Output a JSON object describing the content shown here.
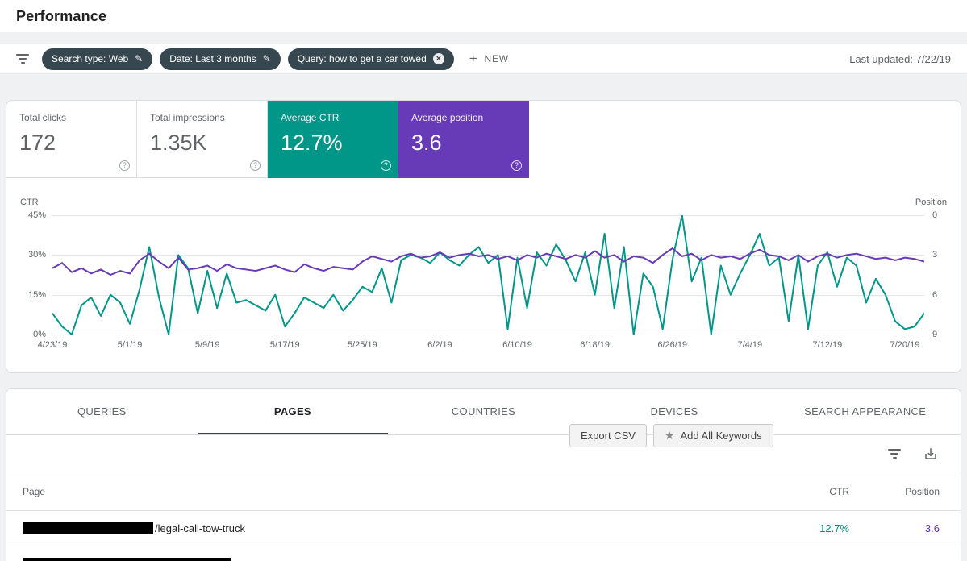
{
  "header": {
    "title": "Performance"
  },
  "filter_bar": {
    "chips": [
      {
        "label": "Search type: Web",
        "action": "edit"
      },
      {
        "label": "Date: Last 3 months",
        "action": "edit"
      },
      {
        "label": "Query: how to get a car towed",
        "action": "remove"
      }
    ],
    "new_button_label": "NEW",
    "last_updated": "Last updated: 7/22/19"
  },
  "icons": {
    "edit": "✎",
    "close": "×",
    "plus": "+",
    "star": "★",
    "help": "?"
  },
  "colors": {
    "ctr_teal": "#009688",
    "position_purple": "#673ab7",
    "chip_bg": "#37474f"
  },
  "metrics": [
    {
      "label": "Total clicks",
      "value": "172",
      "selected": false
    },
    {
      "label": "Total impressions",
      "value": "1.35K",
      "selected": false
    },
    {
      "label": "Average CTR",
      "value": "12.7%",
      "selected": true,
      "color": "#009688"
    },
    {
      "label": "Average position",
      "value": "3.6",
      "selected": true,
      "color": "#673ab7"
    }
  ],
  "chart_data": {
    "type": "line",
    "title": "CTR and average position over time",
    "left_axis": {
      "label": "CTR",
      "ticks": [
        "45%",
        "30%",
        "15%",
        "0%"
      ],
      "range": [
        0,
        45
      ]
    },
    "right_axis": {
      "label": "Position",
      "ticks": [
        "0",
        "3",
        "6",
        "9"
      ],
      "range": [
        0,
        9
      ],
      "inverted": true
    },
    "x_tick_labels": [
      "4/23/19",
      "5/1/19",
      "5/9/19",
      "5/17/19",
      "5/25/19",
      "6/2/19",
      "6/10/19",
      "6/18/19",
      "6/26/19",
      "7/4/19",
      "7/12/19",
      "7/20/19"
    ],
    "grid": true,
    "series": [
      {
        "name": "CTR",
        "axis": "left",
        "color": "#009688",
        "values": [
          8,
          3,
          0,
          11,
          14,
          7,
          15,
          12,
          4,
          17,
          33,
          14,
          0,
          30,
          25,
          8,
          24,
          10,
          23,
          12,
          13,
          11,
          9,
          15,
          3,
          8,
          14,
          12,
          10,
          15,
          9,
          13,
          18,
          16,
          25,
          12,
          28,
          30,
          29,
          27,
          31,
          28,
          26,
          30,
          33,
          27,
          30,
          2,
          29,
          10,
          31,
          26,
          34,
          28,
          20,
          31,
          15,
          38,
          10,
          33,
          0,
          23,
          18,
          2,
          28,
          45,
          20,
          29,
          0,
          26,
          15,
          23,
          30,
          38,
          26,
          29,
          5,
          30,
          2,
          26,
          31,
          18,
          29,
          26,
          12,
          21,
          15,
          5,
          2,
          3,
          8
        ]
      },
      {
        "name": "Position",
        "axis": "right",
        "color": "#673ab7",
        "values": [
          4.0,
          3.6,
          4.3,
          4.0,
          4.4,
          4.1,
          4.5,
          4.2,
          4.4,
          3.4,
          2.9,
          3.5,
          4.0,
          3.2,
          4.1,
          4.0,
          3.8,
          4.2,
          3.7,
          4.0,
          4.1,
          4.2,
          4.0,
          3.8,
          4.1,
          4.3,
          3.7,
          4.0,
          4.2,
          3.9,
          4.0,
          4.1,
          3.5,
          3.1,
          3.3,
          3.5,
          3.1,
          2.9,
          3.2,
          3.1,
          2.8,
          3.2,
          3.0,
          2.9,
          3.1,
          3.0,
          3.3,
          3.1,
          3.4,
          3.0,
          3.2,
          2.9,
          3.1,
          3.3,
          3.0,
          3.2,
          2.7,
          3.2,
          3.0,
          3.5,
          3.1,
          3.2,
          3.6,
          3.0,
          2.5,
          3.1,
          2.9,
          3.4,
          3.0,
          3.2,
          3.1,
          3.3,
          2.9,
          2.6,
          3.0,
          3.1,
          3.4,
          3.0,
          3.5,
          3.1,
          2.9,
          3.2,
          3.0,
          2.9,
          3.1,
          3.3,
          3.2,
          3.4,
          3.2,
          3.3,
          3.5
        ]
      }
    ]
  },
  "table": {
    "tabs": [
      {
        "label": "QUERIES",
        "active": false
      },
      {
        "label": "PAGES",
        "active": true
      },
      {
        "label": "COUNTRIES",
        "active": false
      },
      {
        "label": "DEVICES",
        "active": false
      },
      {
        "label": "SEARCH APPEARANCE",
        "active": false
      }
    ],
    "buttons": {
      "export_csv": "Export CSV",
      "add_all_keywords": "Add All Keywords"
    },
    "columns": {
      "page": "Page",
      "ctr": "CTR",
      "position": "Position"
    },
    "rows": [
      {
        "page_redacted": true,
        "page_suffix": "/legal-call-tow-truck",
        "ctr": "12.7%",
        "position": "3.6"
      },
      {
        "page_redacted": true,
        "page_suffix": "",
        "ctr": "",
        "position": ""
      }
    ]
  }
}
